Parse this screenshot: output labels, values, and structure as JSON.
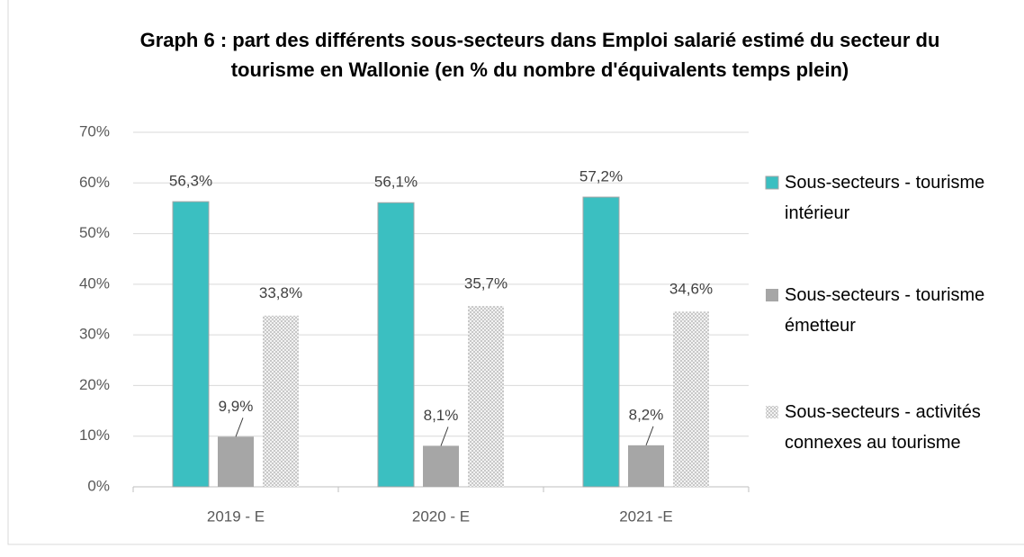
{
  "chart_data": {
    "type": "bar",
    "title": "Graph 6 : part des différents sous-secteurs dans Emploi salarié estimé du secteur du tourisme en Wallonie (en % du nombre d'équivalents temps plein)",
    "categories": [
      "2019 - E",
      "2020 - E",
      "2021 -E"
    ],
    "series": [
      {
        "name": "Sous-secteurs - tourisme intérieur",
        "color": "#3bbfc1",
        "values": [
          56.3,
          56.1,
          57.2
        ],
        "value_labels": [
          "56,3%",
          "56,1%",
          "57,2%"
        ]
      },
      {
        "name": "Sous-secteurs - tourisme émetteur",
        "color": "#a6a6a6",
        "values": [
          9.9,
          8.1,
          8.2
        ],
        "value_labels": [
          "9,9%",
          "8,1%",
          "8,2%"
        ]
      },
      {
        "name": "Sous-secteurs - activités connexes au tourisme",
        "color": "#d9d9d9",
        "fill_pattern": "checker",
        "values": [
          33.8,
          35.7,
          34.6
        ],
        "value_labels": [
          "33,8%",
          "35,7%",
          "34,6%"
        ]
      }
    ],
    "ylim": [
      0,
      70
    ],
    "yticks": [
      {
        "value": 0,
        "label": "0%"
      },
      {
        "value": 10,
        "label": "10%"
      },
      {
        "value": 20,
        "label": "20%"
      },
      {
        "value": 30,
        "label": "30%"
      },
      {
        "value": 40,
        "label": "40%"
      },
      {
        "value": 50,
        "label": "50%"
      },
      {
        "value": 60,
        "label": "60%"
      },
      {
        "value": 70,
        "label": "70%"
      }
    ],
    "grid": true,
    "legend": "right"
  }
}
